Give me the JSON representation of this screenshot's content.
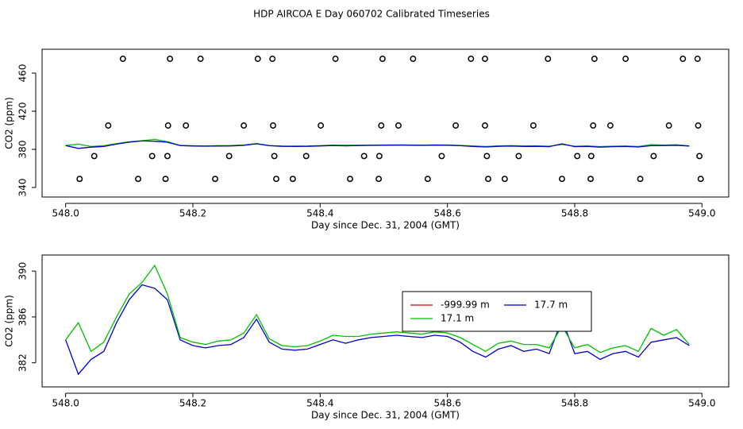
{
  "chart_data": [
    {
      "type": "scatter",
      "title": "HDP AIRCOA E  Day 060702  Calibrated Timeseries",
      "xlabel": "Day since Dec. 31, 2004 (GMT)",
      "ylabel": "CO2 (ppm)",
      "xlim": [
        547.963,
        549.042
      ],
      "ylim": [
        330,
        485
      ],
      "xticks": [
        {
          "value": 548,
          "label": "548.0"
        },
        548.2,
        548.4,
        548.6,
        548.8,
        {
          "value": 549,
          "label": "549.0"
        }
      ],
      "yticks": [
        340,
        380,
        420,
        460
      ],
      "x": [
        548.0,
        548.02,
        548.04,
        548.06,
        548.08,
        548.1,
        548.12,
        548.14,
        548.16,
        548.18,
        548.2,
        548.22,
        548.24,
        548.26,
        548.28,
        548.3,
        548.32,
        548.34,
        548.36,
        548.38,
        548.4,
        548.42,
        548.44,
        548.46,
        548.48,
        548.5,
        548.52,
        548.54,
        548.56,
        548.58,
        548.6,
        548.62,
        548.64,
        548.66,
        548.68,
        548.7,
        548.72,
        548.74,
        548.76,
        548.78,
        548.8,
        548.82,
        548.84,
        548.86,
        548.88,
        548.9,
        548.92,
        548.94,
        548.96,
        548.98
      ],
      "series": [
        {
          "type": "scatter",
          "color": "#000000",
          "x": [
            548.09,
            548.164,
            548.212,
            548.302,
            548.325,
            548.424,
            548.498,
            548.546,
            548.637,
            548.659,
            548.758,
            548.831,
            548.88,
            548.97,
            548.993,
            548.067,
            548.161,
            548.189,
            548.28,
            548.326,
            548.401,
            548.496,
            548.523,
            548.613,
            548.659,
            548.735,
            548.829,
            548.856,
            548.948,
            548.994,
            548.045,
            548.136,
            548.16,
            548.257,
            548.328,
            548.378,
            548.469,
            548.493,
            548.591,
            548.662,
            548.712,
            548.804,
            548.826,
            548.924,
            548.996,
            548.022,
            548.114,
            548.157,
            548.235,
            548.331,
            548.357,
            548.447,
            548.492,
            548.569,
            548.664,
            548.69,
            548.78,
            548.825,
            548.903,
            548.998
          ],
          "values": [
            475,
            475,
            475,
            475,
            475,
            475,
            475,
            475,
            475,
            475,
            475,
            475,
            475,
            475,
            475,
            405,
            405,
            405,
            405,
            405,
            405,
            405,
            405,
            405,
            405,
            405,
            405,
            405,
            405,
            405,
            373,
            373,
            373,
            373,
            373,
            373,
            373,
            373,
            373,
            373,
            373,
            373,
            373,
            373,
            373,
            349,
            349,
            349,
            349,
            349,
            349,
            349,
            349,
            349,
            349,
            349,
            349,
            349,
            349,
            349
          ]
        },
        {
          "type": "line",
          "color": "#00c000",
          "values": [
            384.0,
            385.5,
            383.0,
            383.8,
            386.0,
            388.0,
            389.0,
            390.5,
            388.0,
            384.2,
            383.8,
            383.6,
            383.9,
            384.0,
            384.6,
            386.2,
            384.1,
            383.5,
            383.4,
            383.5,
            383.9,
            384.4,
            384.3,
            384.3,
            384.5,
            384.6,
            384.7,
            384.6,
            384.5,
            384.7,
            384.6,
            384.2,
            383.6,
            383.0,
            383.7,
            383.9,
            383.6,
            383.6,
            383.3,
            385.2,
            383.3,
            383.6,
            382.9,
            383.3,
            383.5,
            383.0,
            385.0,
            384.4,
            384.9,
            383.6
          ]
        },
        {
          "type": "line",
          "color": "#0000cc",
          "values": [
            384.0,
            381.0,
            382.3,
            383.0,
            385.5,
            387.5,
            388.8,
            388.5,
            387.5,
            384.0,
            383.5,
            383.3,
            383.5,
            383.6,
            384.2,
            385.8,
            383.8,
            383.2,
            383.1,
            383.2,
            383.6,
            384.0,
            383.7,
            384.0,
            384.2,
            384.3,
            384.4,
            384.3,
            384.2,
            384.4,
            384.3,
            383.8,
            383.0,
            382.5,
            383.2,
            383.5,
            383.0,
            383.2,
            382.8,
            385.8,
            382.8,
            383.0,
            382.3,
            382.8,
            383.0,
            382.5,
            383.8,
            384.0,
            384.2,
            383.5
          ]
        }
      ]
    },
    {
      "type": "line",
      "xlabel": "Day since Dec. 31, 2004 (GMT)",
      "ylabel": "CO2 (ppm)",
      "xlim": [
        547.963,
        549.042
      ],
      "ylim": [
        379.9,
        391.4
      ],
      "xticks": [
        {
          "value": 548,
          "label": "548.0"
        },
        548.2,
        548.4,
        548.6,
        548.8,
        {
          "value": 549,
          "label": "549.0"
        }
      ],
      "yticks": [
        382,
        386,
        390
      ],
      "legend": "right",
      "x": [
        548.0,
        548.02,
        548.04,
        548.06,
        548.08,
        548.1,
        548.12,
        548.14,
        548.16,
        548.18,
        548.2,
        548.22,
        548.24,
        548.26,
        548.28,
        548.3,
        548.32,
        548.34,
        548.36,
        548.38,
        548.4,
        548.42,
        548.44,
        548.46,
        548.48,
        548.5,
        548.52,
        548.54,
        548.56,
        548.58,
        548.6,
        548.62,
        548.64,
        548.66,
        548.68,
        548.7,
        548.72,
        548.74,
        548.76,
        548.78,
        548.8,
        548.82,
        548.84,
        548.86,
        548.88,
        548.9,
        548.92,
        548.94,
        548.96,
        548.98
      ],
      "series": [
        {
          "name": "-999.99 m",
          "type": "line",
          "color": "#cc0000",
          "values": [
            null,
            null,
            null,
            null,
            null,
            null,
            null,
            null,
            null,
            null,
            null,
            null,
            null,
            null,
            null,
            null,
            null,
            null,
            null,
            null,
            null,
            null,
            null,
            null,
            null,
            null,
            null,
            null,
            null,
            null,
            null,
            null,
            null,
            null,
            null,
            null,
            null,
            null,
            null,
            null,
            null,
            null,
            null,
            null,
            null,
            null,
            null,
            null,
            null,
            null
          ]
        },
        {
          "name": "17.7 m",
          "type": "line",
          "color": "#0000cc",
          "values": [
            384.0,
            381.0,
            382.3,
            383.0,
            385.5,
            387.5,
            388.8,
            388.5,
            387.5,
            384.0,
            383.5,
            383.3,
            383.5,
            383.6,
            384.2,
            385.8,
            383.8,
            383.2,
            383.1,
            383.2,
            383.6,
            384.0,
            383.7,
            384.0,
            384.2,
            384.3,
            384.4,
            384.3,
            384.2,
            384.4,
            384.3,
            383.8,
            383.0,
            382.5,
            383.2,
            383.5,
            383.0,
            383.2,
            382.8,
            385.8,
            382.8,
            383.0,
            382.3,
            382.8,
            383.0,
            382.5,
            383.8,
            384.0,
            384.2,
            383.5
          ]
        },
        {
          "name": "17.1 m",
          "type": "line",
          "color": "#00c000",
          "values": [
            384.0,
            385.5,
            383.0,
            383.8,
            386.0,
            388.0,
            389.0,
            390.5,
            388.0,
            384.2,
            383.8,
            383.6,
            383.9,
            384.0,
            384.6,
            386.2,
            384.1,
            383.5,
            383.4,
            383.5,
            383.9,
            384.4,
            384.3,
            384.3,
            384.5,
            384.6,
            384.7,
            384.6,
            384.5,
            384.7,
            384.6,
            384.2,
            383.6,
            383.0,
            383.7,
            383.9,
            383.6,
            383.6,
            383.3,
            385.2,
            383.3,
            383.6,
            382.9,
            383.3,
            383.5,
            383.0,
            385.0,
            384.4,
            384.9,
            383.6
          ]
        }
      ]
    }
  ]
}
